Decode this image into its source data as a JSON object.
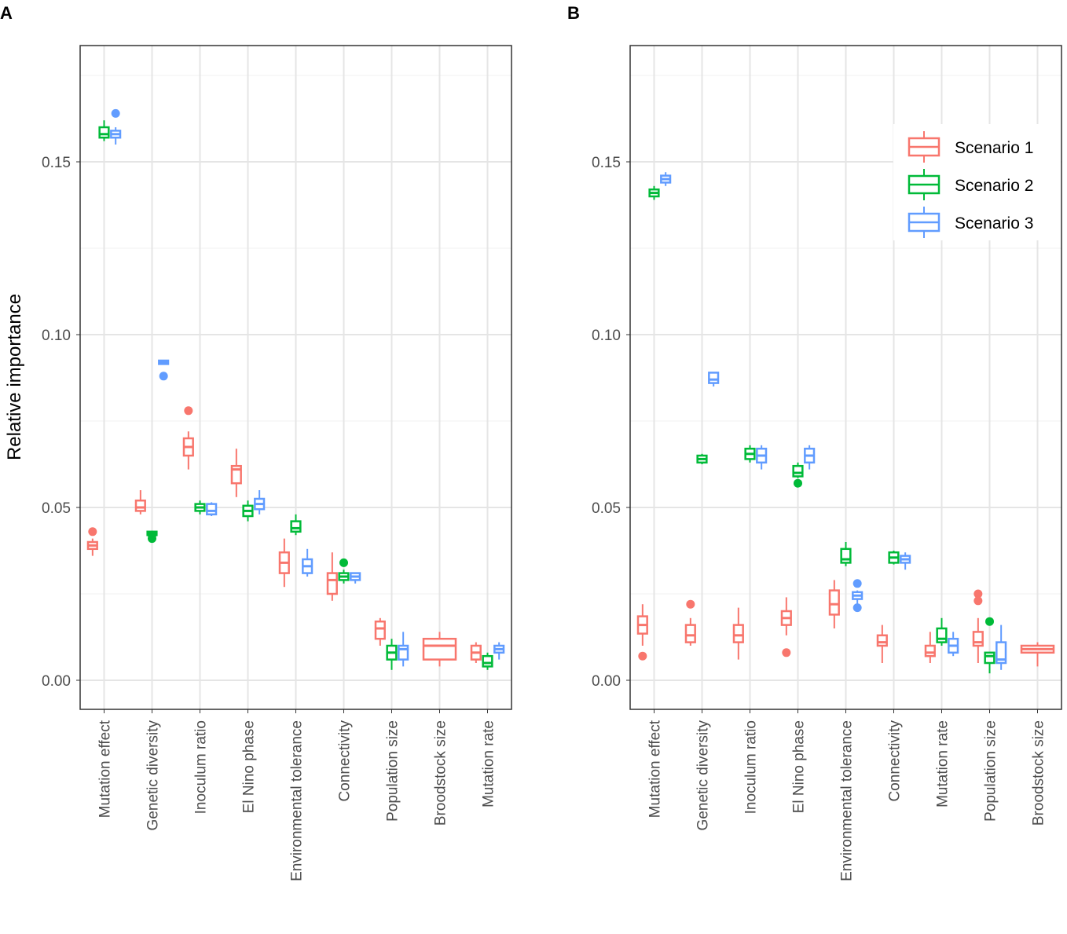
{
  "chart_data": [
    {
      "type": "box",
      "panel_label": "A",
      "ylabel": "Relative importance",
      "xlabel": "",
      "ylim": [
        -0.0084,
        0.1836
      ],
      "yticks": [
        "0.00",
        "0.05",
        "0.10",
        "0.15"
      ],
      "grid": true,
      "categories": [
        "Mutation effect",
        "Genetic diversity",
        "Inoculum ratio",
        "El Nino phase",
        "Environmental tolerance",
        "Connectivity",
        "Population size",
        "Broodstock size",
        "Mutation rate"
      ],
      "series": [
        {
          "name": "Scenario 1",
          "color": "#F8766D",
          "boxes": [
            {
              "lo": 0.036,
              "q1": 0.038,
              "med": 0.039,
              "q3": 0.04,
              "hi": 0.041,
              "out": [
                0.043
              ]
            },
            {
              "lo": 0.048,
              "q1": 0.049,
              "med": 0.05,
              "q3": 0.052,
              "hi": 0.055,
              "out": []
            },
            {
              "lo": 0.061,
              "q1": 0.065,
              "med": 0.0675,
              "q3": 0.07,
              "hi": 0.072,
              "out": [
                0.078
              ]
            },
            {
              "lo": 0.053,
              "q1": 0.057,
              "med": 0.061,
              "q3": 0.062,
              "hi": 0.067,
              "out": []
            },
            {
              "lo": 0.027,
              "q1": 0.031,
              "med": 0.034,
              "q3": 0.037,
              "hi": 0.041,
              "out": []
            },
            {
              "lo": 0.023,
              "q1": 0.025,
              "med": 0.029,
              "q3": 0.031,
              "hi": 0.037,
              "out": []
            },
            {
              "lo": 0.01,
              "q1": 0.012,
              "med": 0.015,
              "q3": 0.017,
              "hi": 0.018,
              "out": []
            },
            {
              "lo": 0.004,
              "q1": 0.006,
              "med": 0.01,
              "q3": 0.012,
              "hi": 0.014,
              "out": []
            },
            {
              "lo": 0.005,
              "q1": 0.006,
              "med": 0.008,
              "q3": 0.01,
              "hi": 0.011,
              "out": []
            }
          ]
        },
        {
          "name": "Scenario 2",
          "color": "#00BA38",
          "boxes": [
            {
              "lo": 0.156,
              "q1": 0.157,
              "med": 0.158,
              "q3": 0.16,
              "hi": 0.162,
              "out": []
            },
            {
              "lo": 0.042,
              "q1": 0.042,
              "med": 0.0425,
              "q3": 0.043,
              "hi": 0.043,
              "out": [
                0.041,
                0.042
              ]
            },
            {
              "lo": 0.048,
              "q1": 0.049,
              "med": 0.05,
              "q3": 0.051,
              "hi": 0.052,
              "out": []
            },
            {
              "lo": 0.046,
              "q1": 0.0475,
              "med": 0.049,
              "q3": 0.0505,
              "hi": 0.052,
              "out": []
            },
            {
              "lo": 0.042,
              "q1": 0.043,
              "med": 0.044,
              "q3": 0.046,
              "hi": 0.048,
              "out": []
            },
            {
              "lo": 0.028,
              "q1": 0.029,
              "med": 0.03,
              "q3": 0.031,
              "hi": 0.032,
              "out": [
                0.034
              ]
            },
            {
              "lo": 0.003,
              "q1": 0.006,
              "med": 0.008,
              "q3": 0.01,
              "hi": 0.012,
              "out": []
            },
            null,
            {
              "lo": 0.003,
              "q1": 0.004,
              "med": 0.005,
              "q3": 0.007,
              "hi": 0.008,
              "out": []
            }
          ]
        },
        {
          "name": "Scenario 3",
          "color": "#619CFF",
          "boxes": [
            {
              "lo": 0.155,
              "q1": 0.157,
              "med": 0.158,
              "q3": 0.159,
              "hi": 0.16,
              "out": [
                0.164
              ]
            },
            {
              "lo": 0.0915,
              "q1": 0.0915,
              "med": 0.092,
              "q3": 0.0925,
              "hi": 0.0925,
              "out": [
                0.088
              ]
            },
            {
              "lo": 0.0475,
              "q1": 0.048,
              "med": 0.049,
              "q3": 0.051,
              "hi": 0.0515,
              "out": []
            },
            {
              "lo": 0.048,
              "q1": 0.0495,
              "med": 0.051,
              "q3": 0.0525,
              "hi": 0.055,
              "out": []
            },
            {
              "lo": 0.03,
              "q1": 0.031,
              "med": 0.033,
              "q3": 0.035,
              "hi": 0.038,
              "out": []
            },
            {
              "lo": 0.028,
              "q1": 0.029,
              "med": 0.03,
              "q3": 0.031,
              "hi": 0.031,
              "out": []
            },
            {
              "lo": 0.004,
              "q1": 0.006,
              "med": 0.009,
              "q3": 0.01,
              "hi": 0.014,
              "out": []
            },
            null,
            {
              "lo": 0.006,
              "q1": 0.008,
              "med": 0.009,
              "q3": 0.01,
              "hi": 0.011,
              "out": []
            }
          ]
        }
      ]
    },
    {
      "type": "box",
      "panel_label": "B",
      "ylabel": "",
      "xlabel": "",
      "ylim": [
        -0.0084,
        0.1836
      ],
      "yticks": [
        "0.00",
        "0.05",
        "0.10",
        "0.15"
      ],
      "grid": true,
      "legend": {
        "placement": "top-right",
        "entries": [
          "Scenario 1",
          "Scenario 2",
          "Scenario 3"
        ]
      },
      "categories": [
        "Mutation effect",
        "Genetic diversity",
        "Inoculum ratio",
        "El Nino phase",
        "Environmental tolerance",
        "Connectivity",
        "Mutation rate",
        "Population size",
        "Broodstock size"
      ],
      "series": [
        {
          "name": "Scenario 1",
          "color": "#F8766D",
          "boxes": [
            {
              "lo": 0.01,
              "q1": 0.0135,
              "med": 0.016,
              "q3": 0.0185,
              "hi": 0.022,
              "out": [
                0.007
              ]
            },
            {
              "lo": 0.01,
              "q1": 0.011,
              "med": 0.013,
              "q3": 0.016,
              "hi": 0.018,
              "out": [
                0.022
              ]
            },
            {
              "lo": 0.006,
              "q1": 0.011,
              "med": 0.013,
              "q3": 0.016,
              "hi": 0.021,
              "out": []
            },
            {
              "lo": 0.013,
              "q1": 0.016,
              "med": 0.018,
              "q3": 0.02,
              "hi": 0.024,
              "out": [
                0.008
              ]
            },
            {
              "lo": 0.015,
              "q1": 0.019,
              "med": 0.022,
              "q3": 0.026,
              "hi": 0.029,
              "out": []
            },
            {
              "lo": 0.005,
              "q1": 0.01,
              "med": 0.011,
              "q3": 0.013,
              "hi": 0.016,
              "out": []
            },
            {
              "lo": 0.005,
              "q1": 0.007,
              "med": 0.008,
              "q3": 0.01,
              "hi": 0.014,
              "out": []
            },
            {
              "lo": 0.005,
              "q1": 0.01,
              "med": 0.011,
              "q3": 0.014,
              "hi": 0.018,
              "out": [
                0.023,
                0.025
              ]
            },
            {
              "lo": 0.004,
              "q1": 0.008,
              "med": 0.009,
              "q3": 0.01,
              "hi": 0.011,
              "out": []
            }
          ]
        },
        {
          "name": "Scenario 2",
          "color": "#00BA38",
          "boxes": [
            {
              "lo": 0.139,
              "q1": 0.14,
              "med": 0.141,
              "q3": 0.142,
              "hi": 0.143,
              "out": []
            },
            {
              "lo": 0.0625,
              "q1": 0.063,
              "med": 0.064,
              "q3": 0.065,
              "hi": 0.0655,
              "out": []
            },
            {
              "lo": 0.063,
              "q1": 0.064,
              "med": 0.0655,
              "q3": 0.067,
              "hi": 0.068,
              "out": []
            },
            {
              "lo": 0.0585,
              "q1": 0.059,
              "med": 0.06,
              "q3": 0.062,
              "hi": 0.063,
              "out": [
                0.057
              ]
            },
            {
              "lo": 0.033,
              "q1": 0.034,
              "med": 0.035,
              "q3": 0.038,
              "hi": 0.04,
              "out": []
            },
            {
              "lo": 0.0335,
              "q1": 0.034,
              "med": 0.0355,
              "q3": 0.037,
              "hi": 0.0375,
              "out": []
            },
            {
              "lo": 0.01,
              "q1": 0.011,
              "med": 0.012,
              "q3": 0.015,
              "hi": 0.018,
              "out": []
            },
            {
              "lo": 0.002,
              "q1": 0.005,
              "med": 0.007,
              "q3": 0.008,
              "hi": 0.008,
              "out": [
                0.017
              ]
            },
            null
          ]
        },
        {
          "name": "Scenario 3",
          "color": "#619CFF",
          "boxes": [
            {
              "lo": 0.143,
              "q1": 0.144,
              "med": 0.145,
              "q3": 0.146,
              "hi": 0.147,
              "out": []
            },
            {
              "lo": 0.085,
              "q1": 0.086,
              "med": 0.087,
              "q3": 0.089,
              "hi": 0.089,
              "out": []
            },
            {
              "lo": 0.061,
              "q1": 0.063,
              "med": 0.065,
              "q3": 0.067,
              "hi": 0.068,
              "out": []
            },
            {
              "lo": 0.061,
              "q1": 0.063,
              "med": 0.065,
              "q3": 0.067,
              "hi": 0.068,
              "out": []
            },
            {
              "lo": 0.022,
              "q1": 0.0235,
              "med": 0.0245,
              "q3": 0.0255,
              "hi": 0.026,
              "out": [
                0.021,
                0.028
              ]
            },
            {
              "lo": 0.032,
              "q1": 0.034,
              "med": 0.035,
              "q3": 0.036,
              "hi": 0.037,
              "out": []
            },
            {
              "lo": 0.007,
              "q1": 0.008,
              "med": 0.01,
              "q3": 0.012,
              "hi": 0.014,
              "out": []
            },
            {
              "lo": 0.003,
              "q1": 0.005,
              "med": 0.006,
              "q3": 0.011,
              "hi": 0.016,
              "out": []
            },
            null
          ]
        }
      ]
    }
  ]
}
